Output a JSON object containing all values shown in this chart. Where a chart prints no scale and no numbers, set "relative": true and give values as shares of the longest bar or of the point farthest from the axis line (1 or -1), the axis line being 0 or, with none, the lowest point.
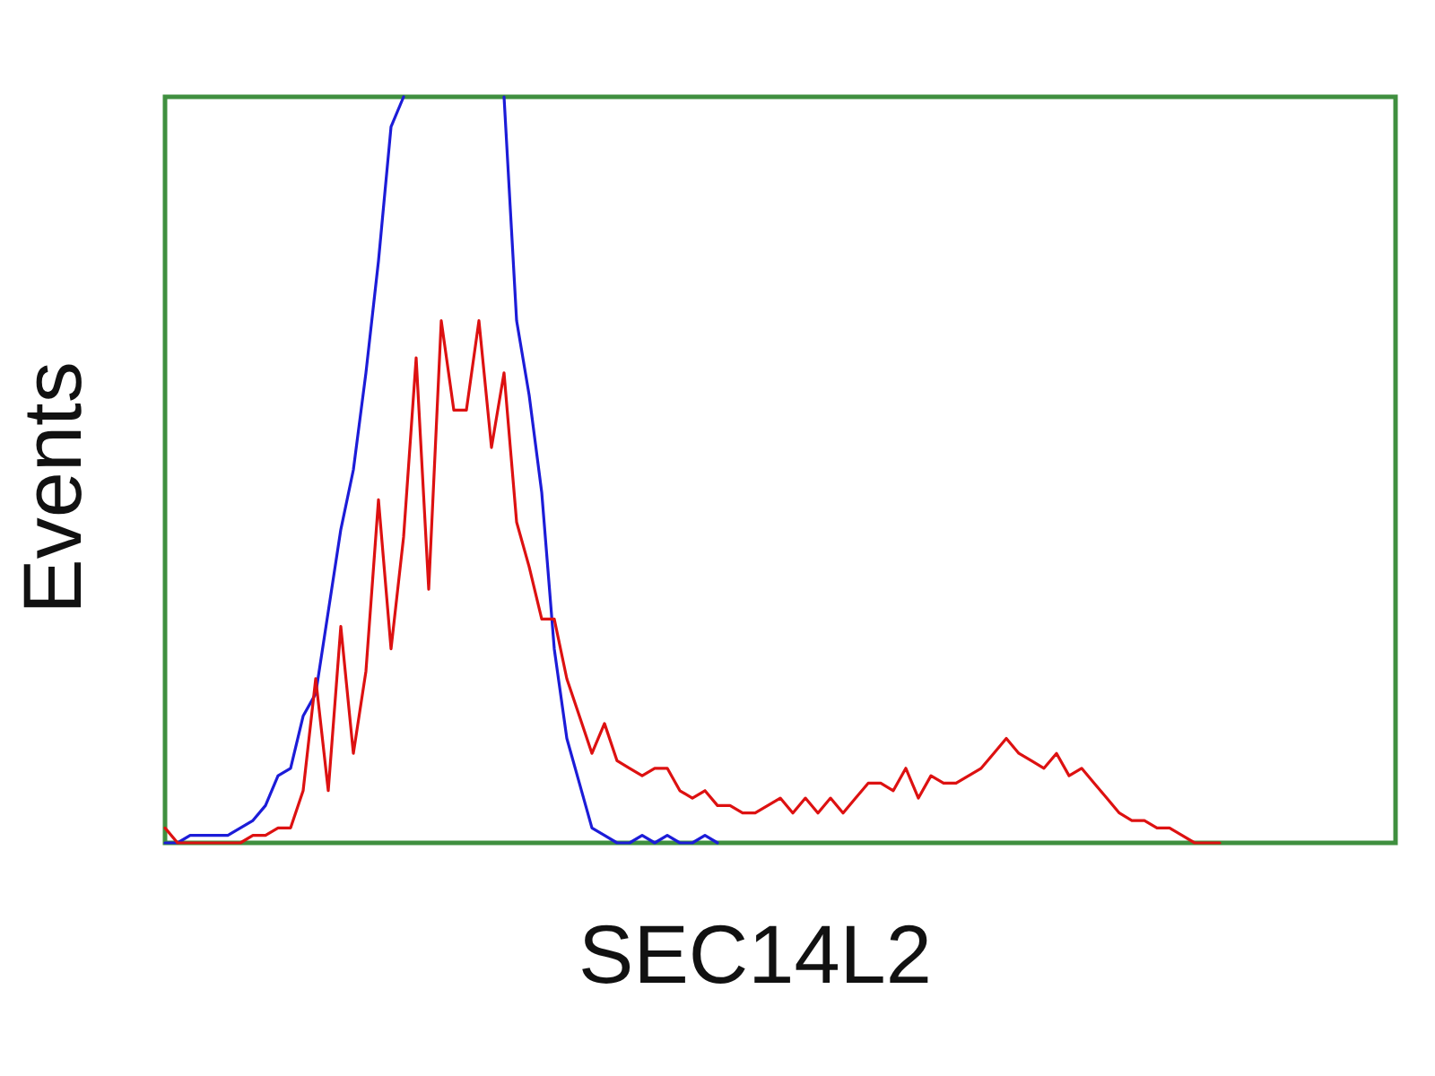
{
  "chart_data": {
    "type": "line",
    "relative": true,
    "xlabel": "SEC14L2",
    "ylabel": "Events",
    "categories": [
      null,
      null,
      null,
      null,
      null,
      null,
      null,
      null,
      null,
      null,
      null,
      null,
      null,
      null,
      null,
      null,
      null,
      null,
      null,
      null,
      null,
      null,
      null,
      null,
      null,
      null,
      null,
      null,
      null,
      null,
      null,
      null,
      null,
      null,
      null,
      null,
      null,
      null,
      null,
      null,
      null,
      null,
      null,
      null,
      null,
      null,
      null,
      null,
      null,
      null,
      null,
      null,
      null,
      null,
      null,
      null,
      null,
      null,
      null,
      null,
      null,
      null,
      null,
      null,
      null,
      null,
      null,
      null,
      null,
      null,
      null,
      null,
      null,
      null,
      null,
      null,
      null,
      null,
      null,
      null,
      null,
      null,
      null,
      null,
      null,
      null,
      null,
      null,
      null,
      null,
      null,
      null,
      null,
      null,
      null,
      null,
      null,
      null,
      null
    ],
    "series": [
      {
        "color": "#1c1cd8",
        "values": [
          0,
          0,
          0.01,
          0.01,
          0.01,
          0.01,
          0.02,
          0.03,
          0.05,
          0.09,
          0.1,
          0.17,
          0.2,
          0.31,
          0.42,
          0.5,
          0.63,
          0.78,
          0.96,
          1,
          null,
          null,
          null,
          null,
          null,
          null,
          null,
          1,
          0.7,
          0.6,
          0.47,
          0.26,
          0.14,
          0.08,
          0.02,
          0.01,
          0,
          0,
          0.01,
          0,
          0.01,
          0,
          0,
          0.01,
          0,
          null,
          null,
          null,
          null,
          null,
          null,
          null,
          null,
          null,
          null,
          null,
          null,
          null,
          null,
          null,
          null,
          null,
          null,
          null,
          null,
          null,
          null,
          null,
          null,
          null,
          null,
          null,
          null,
          null,
          null,
          null,
          null,
          null,
          null,
          null,
          null,
          null,
          null,
          null,
          null,
          null,
          null,
          null,
          null,
          null,
          null,
          null,
          null,
          null,
          null,
          null,
          null,
          null,
          null
        ]
      },
      {
        "color": "#dd1111",
        "values": [
          0.02,
          0,
          0,
          0,
          0,
          0,
          0,
          0.01,
          0.01,
          0.02,
          0.02,
          0.07,
          0.22,
          0.07,
          0.29,
          0.12,
          0.23,
          0.46,
          0.26,
          0.41,
          0.65,
          0.34,
          0.7,
          0.58,
          0.58,
          0.7,
          0.53,
          0.63,
          0.43,
          0.37,
          0.3,
          0.3,
          0.22,
          0.17,
          0.12,
          0.16,
          0.11,
          0.1,
          0.09,
          0.1,
          0.1,
          0.07,
          0.06,
          0.07,
          0.05,
          0.05,
          0.04,
          0.04,
          0.05,
          0.06,
          0.04,
          0.06,
          0.04,
          0.06,
          0.04,
          0.06,
          0.08,
          0.08,
          0.07,
          0.1,
          0.06,
          0.09,
          0.08,
          0.08,
          0.09,
          0.1,
          0.12,
          0.14,
          0.12,
          0.11,
          0.1,
          0.12,
          0.09,
          0.1,
          0.08,
          0.06,
          0.04,
          0.03,
          0.03,
          0.02,
          0.02,
          0.01,
          0,
          0,
          0,
          null,
          null,
          null,
          null,
          null,
          null,
          null,
          null,
          null,
          null,
          null,
          null,
          null,
          null
        ]
      }
    ]
  }
}
